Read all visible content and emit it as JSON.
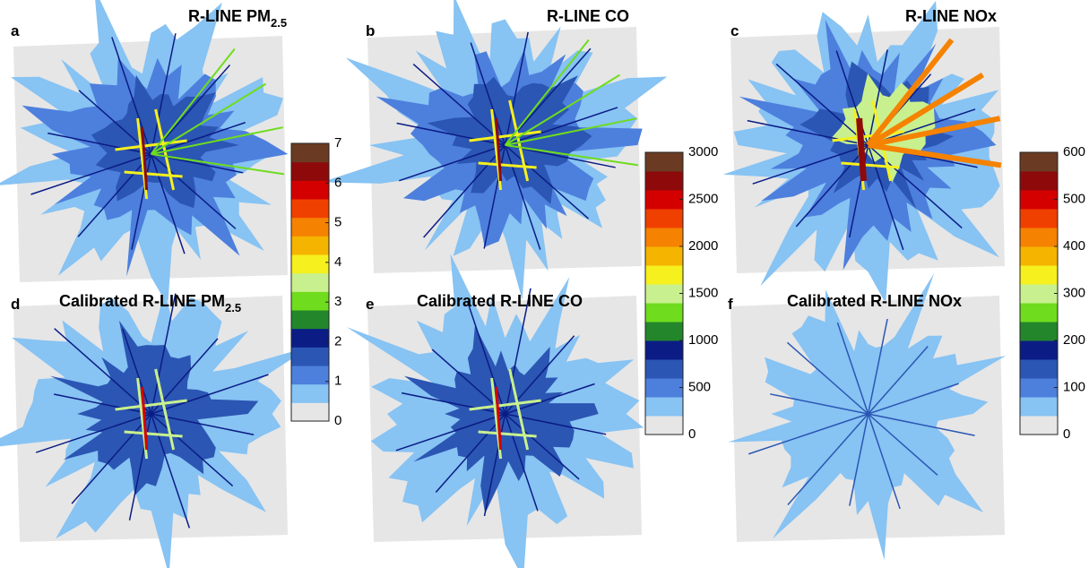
{
  "panels": [
    {
      "label": "a",
      "title": "R-LINE PM",
      "title_sub": "2.5"
    },
    {
      "label": "b",
      "title": "R-LINE CO"
    },
    {
      "label": "c",
      "title": "R-LINE NOx"
    },
    {
      "label": "d",
      "title": "Calibrated R-LINE PM",
      "title_sub": "2.5"
    },
    {
      "label": "e",
      "title": "Calibrated R-LINE CO"
    },
    {
      "label": "f",
      "title": "Calibrated R-LINE NOx"
    }
  ],
  "colorbars": [
    {
      "lim": [
        0,
        7
      ],
      "ticks": [
        0,
        1,
        2,
        3,
        4,
        5,
        6,
        7
      ]
    },
    {
      "lim": [
        0,
        3000
      ],
      "ticks": [
        0,
        500,
        1000,
        1500,
        2000,
        2500,
        3000
      ]
    },
    {
      "lim": [
        0,
        600
      ],
      "ticks": [
        0,
        100,
        200,
        300,
        400,
        500,
        600
      ]
    }
  ],
  "colors": [
    "#e6e6e6",
    "#87c3f3",
    "#4d7fdd",
    "#2b56b3",
    "#0b1c85",
    "#23862b",
    "#6fdc1e",
    "#c9f08e",
    "#f5f01e",
    "#f5b400",
    "#f58200",
    "#f04000",
    "#d40000",
    "#8e0a0a",
    "#6a3b22"
  ]
}
